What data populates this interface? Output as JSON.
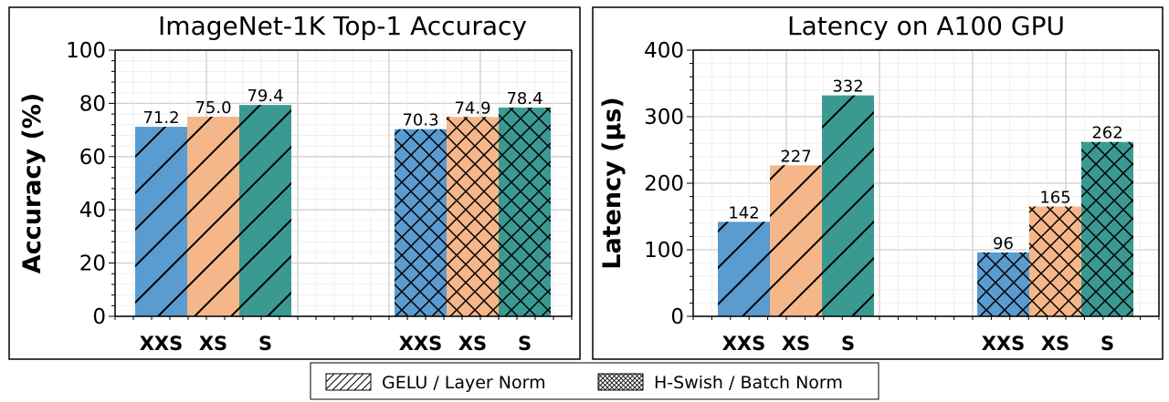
{
  "legend": {
    "placement": "bottom-center",
    "entries": [
      {
        "label": "GELU / Layer Norm",
        "hatch": "diagonal"
      },
      {
        "label": "H-Swish / Batch Norm",
        "hatch": "crosshatch"
      }
    ]
  },
  "colors": {
    "XXS": "#5a9bd0",
    "XS": "#f5b789",
    "S": "#3a9a92",
    "grid": "#d8d8d8",
    "frame": "#000000"
  },
  "chart_data": [
    {
      "type": "bar",
      "title": "ImageNet-1K Top-1 Accuracy",
      "xlabel": "",
      "ylabel": "Accuracy (%)",
      "ylim": [
        0,
        100
      ],
      "yticks": [
        0,
        20,
        40,
        60,
        80,
        100
      ],
      "grid": true,
      "groups": [
        {
          "name": "GELU / Layer Norm",
          "hatch": "diagonal",
          "categories": [
            "XXS",
            "XS",
            "S"
          ],
          "values": [
            71.2,
            75.0,
            79.4
          ],
          "labels": [
            "71.2",
            "75.0",
            "79.4"
          ]
        },
        {
          "name": "H-Swish / Batch Norm",
          "hatch": "crosshatch",
          "categories": [
            "XXS",
            "XS",
            "S"
          ],
          "values": [
            70.3,
            74.9,
            78.4
          ],
          "labels": [
            "70.3",
            "74.9",
            "78.4"
          ]
        }
      ]
    },
    {
      "type": "bar",
      "title": "Latency on A100 GPU",
      "xlabel": "",
      "ylabel": "Latency (µs)",
      "ylim": [
        0,
        400
      ],
      "yticks": [
        0,
        100,
        200,
        300,
        400
      ],
      "grid": true,
      "groups": [
        {
          "name": "GELU / Layer Norm",
          "hatch": "diagonal",
          "categories": [
            "XXS",
            "XS",
            "S"
          ],
          "values": [
            142,
            227,
            332
          ],
          "labels": [
            "142",
            "227",
            "332"
          ]
        },
        {
          "name": "H-Swish / Batch Norm",
          "hatch": "crosshatch",
          "categories": [
            "XXS",
            "XS",
            "S"
          ],
          "values": [
            96,
            165,
            262
          ],
          "labels": [
            "96",
            "165",
            "262"
          ]
        }
      ]
    }
  ]
}
